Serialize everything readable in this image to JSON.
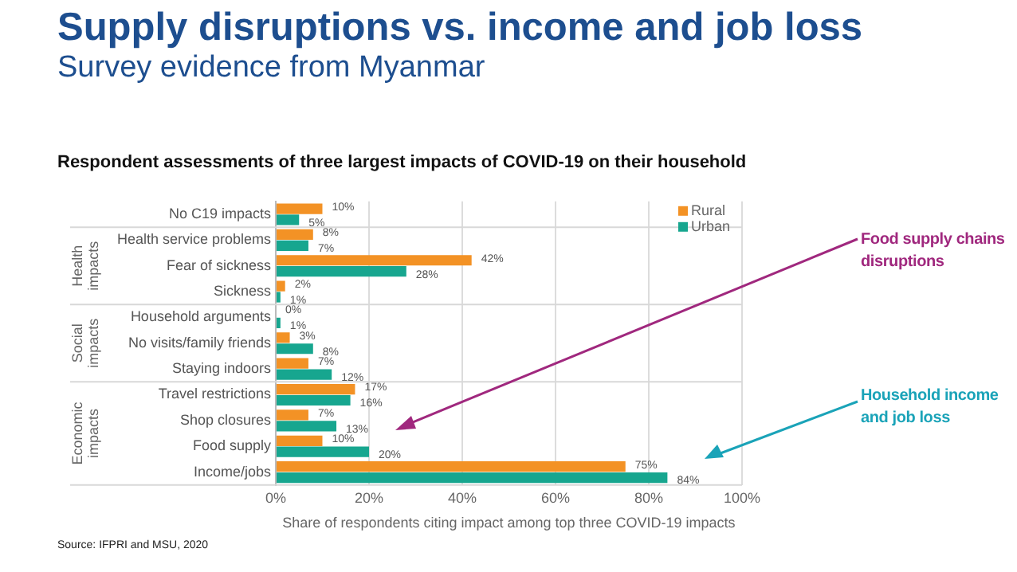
{
  "chart_data": {
    "type": "bar",
    "orientation": "horizontal",
    "title": "Supply disruptions vs. income and job loss",
    "subtitle": "Survey evidence from Myanmar",
    "ylabel": "Respondent assessments of three largest impacts of COVID-19 on their household",
    "xlabel": "Share of respondents citing impact among top three COVID-19 impacts",
    "categories": [
      "No C19 impacts",
      "Health service problems",
      "Fear of sickness",
      "Sickness",
      "Household arguments",
      "No visits/family friends",
      "Staying indoors",
      "Travel restrictions",
      "Shop closures",
      "Food supply",
      "Income/jobs"
    ],
    "series": [
      {
        "name": "Rural",
        "color": "#f39225",
        "values": [
          10,
          8,
          42,
          2,
          0,
          3,
          7,
          17,
          7,
          10,
          75
        ],
        "value_labels": [
          "10%",
          "8%",
          "42%",
          "2%",
          "0%",
          "3%",
          "7%",
          "17%",
          "7%",
          "10%",
          "75%"
        ]
      },
      {
        "name": "Urban",
        "color": "#17a68f",
        "values": [
          5,
          7,
          28,
          1,
          1,
          8,
          12,
          16,
          13,
          20,
          84
        ],
        "value_labels": [
          "5%",
          "7%",
          "28%",
          "1%",
          "1%",
          "8%",
          "12%",
          "16%",
          "13%",
          "20%",
          "84%"
        ]
      }
    ],
    "xlim": [
      0,
      100
    ],
    "xticks": [
      {
        "value": 0,
        "label": "0%"
      },
      {
        "value": 20,
        "label": "20%"
      },
      {
        "value": 40,
        "label": "40%"
      },
      {
        "value": 60,
        "label": "60%"
      },
      {
        "value": 80,
        "label": "80%"
      },
      {
        "value": 100,
        "label": "100%"
      }
    ],
    "grid": "x",
    "legend": "top right",
    "annotations": [
      "Health impacts",
      "Social impacts",
      "Economic impacts",
      "Food supply chains disruptions",
      "Household income and job loss",
      "Source: IFPRI and MSU, 2020"
    ]
  }
}
